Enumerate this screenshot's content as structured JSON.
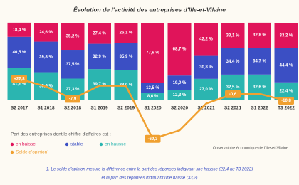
{
  "chart_data": {
    "type": "stacked-bar-line",
    "title": "Évolution de l'activité des entreprises d'Ille-et-Vilaine",
    "categories": [
      "S2 2017",
      "S1 2018",
      "S2 2018",
      "S1 2019",
      "S2 2019",
      "S1 2020",
      "S2 2020",
      "S1 2021",
      "S2 2021",
      "S1 2022",
      "T3 2022"
    ],
    "ylim": [
      0,
      100
    ],
    "y2lim": [
      -80,
      40
    ],
    "legend_title": "Part des entreprises dont le chiffre d'affaires est :",
    "series": [
      {
        "name": "en hausse",
        "color": "#2bb5b0",
        "values": [
          41.2,
          35.6,
          27.3,
          39.7,
          38.0,
          8.6,
          12.3,
          27.0,
          32.5,
          32.6,
          22.4
        ],
        "value_labels": [
          "41,2 %",
          "35,6 %",
          "27,3 %",
          "39,7 %",
          "38,0 %",
          "8,6 %",
          "12,3 %",
          "27,0 %",
          "32,5 %",
          "32,6 %",
          "22,4 %"
        ]
      },
      {
        "name": "stable",
        "color": "#3b4fc4",
        "values": [
          40.5,
          39.8,
          37.5,
          32.9,
          35.9,
          13.5,
          19.0,
          30.8,
          34.4,
          34.7,
          44.4
        ],
        "value_labels": [
          "40,5 %",
          "39,8 %",
          "37,5 %",
          "32,9 %",
          "35,9 %",
          "13,5 %",
          "19,0 %",
          "30,8 %",
          "34,4 %",
          "34,7 %",
          "44,4 %"
        ]
      },
      {
        "name": "en baisse",
        "color": "#e0145a",
        "values": [
          18.4,
          24.6,
          35.2,
          27.4,
          26.1,
          77.9,
          68.7,
          42.2,
          33.1,
          32.8,
          33.2
        ],
        "value_labels": [
          "18,4 %",
          "24,6 %",
          "35,2 %",
          "27,4 %",
          "26,1 %",
          "77,9 %",
          "68,7 %",
          "42,2 %",
          "33,1 %",
          "32,8 %",
          "33,2 %"
        ]
      },
      {
        "name": "Solde d'opinion¹",
        "color": "#f0a030",
        "axis": "y2",
        "values": [
          22.8,
          11.0,
          -7.9,
          12.3,
          11.9,
          -69.3,
          -56.4,
          -15.2,
          -0.6,
          -0.2,
          -10.8
        ],
        "value_labels": [
          "+22,8",
          null,
          "-7,9",
          null,
          null,
          "-69,3",
          null,
          null,
          "-0,6",
          null,
          "-10,8"
        ]
      }
    ],
    "source": "Observatoire économique de l'Ille-et-Vilaine",
    "notes": [
      "1. Le solde d'opinion mesure la différence entre la part des réponses indiquant une hausse (22,4 au T3 2022)",
      "et la part des réponses indiquant une baisse (33,2)"
    ]
  }
}
